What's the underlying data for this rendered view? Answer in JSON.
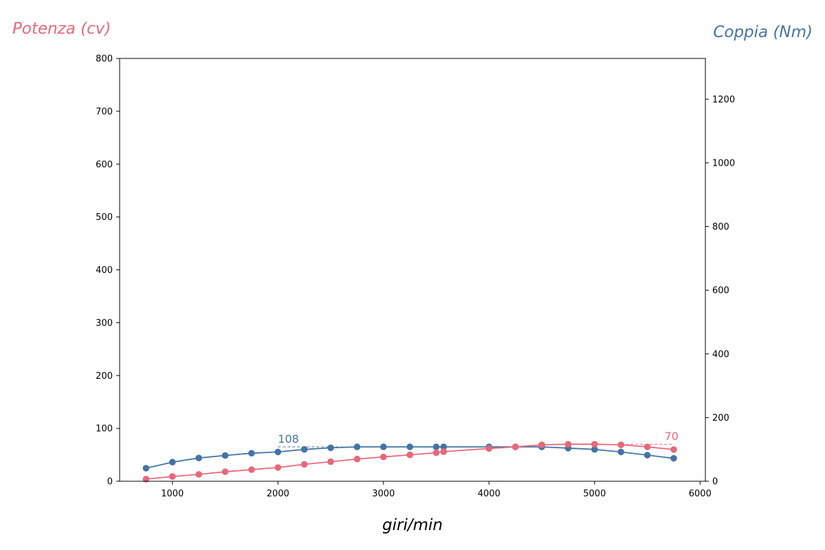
{
  "chart_data": {
    "type": "line",
    "title": "",
    "xlabel": "giri/min",
    "ylabel_left": "Potenza (cv)",
    "ylabel_right": "Coppia (Nm)",
    "xlim": [
      500,
      6050
    ],
    "ylim_left": [
      0,
      800
    ],
    "ylim_right": [
      0,
      1328
    ],
    "x_ticks": [
      1000,
      2000,
      3000,
      4000,
      5000,
      6000
    ],
    "y_left_ticks": [
      0,
      100,
      200,
      300,
      400,
      500,
      600,
      700,
      800
    ],
    "y_right_ticks": [
      0,
      200,
      400,
      600,
      800,
      1000,
      1200
    ],
    "grid": false,
    "series": [
      {
        "name": "Potenza (cv)",
        "axis": "left",
        "color": "#e8677a",
        "x": [
          750,
          1000,
          1250,
          1500,
          1750,
          2000,
          2250,
          2500,
          2750,
          3000,
          3250,
          3500,
          3570,
          4000,
          4250,
          4500,
          4750,
          5000,
          5250,
          5500,
          5750
        ],
        "values": [
          4,
          9,
          13,
          18,
          22,
          26,
          32,
          37,
          42,
          46,
          50,
          54,
          56,
          62,
          65,
          69,
          70,
          70,
          69,
          65,
          60
        ],
        "peak": {
          "label": "70",
          "value": 70,
          "x_from": 5250,
          "x_to": 5750
        }
      },
      {
        "name": "Coppia (Nm)",
        "axis": "right",
        "color": "#4473a4",
        "x": [
          750,
          1000,
          1250,
          1500,
          1750,
          2000,
          2250,
          2500,
          2750,
          3000,
          3250,
          3500,
          3570,
          4000,
          4250,
          4500,
          4750,
          5000,
          5250,
          5500,
          5750
        ],
        "values": [
          41,
          60,
          73,
          81,
          88,
          92,
          100,
          105,
          108,
          108,
          108,
          108,
          108,
          108,
          108,
          108,
          104,
          100,
          92,
          82,
          72
        ],
        "peak": {
          "label": "108",
          "value": 108,
          "x_from": 2000,
          "x_to": 2750
        }
      }
    ]
  }
}
